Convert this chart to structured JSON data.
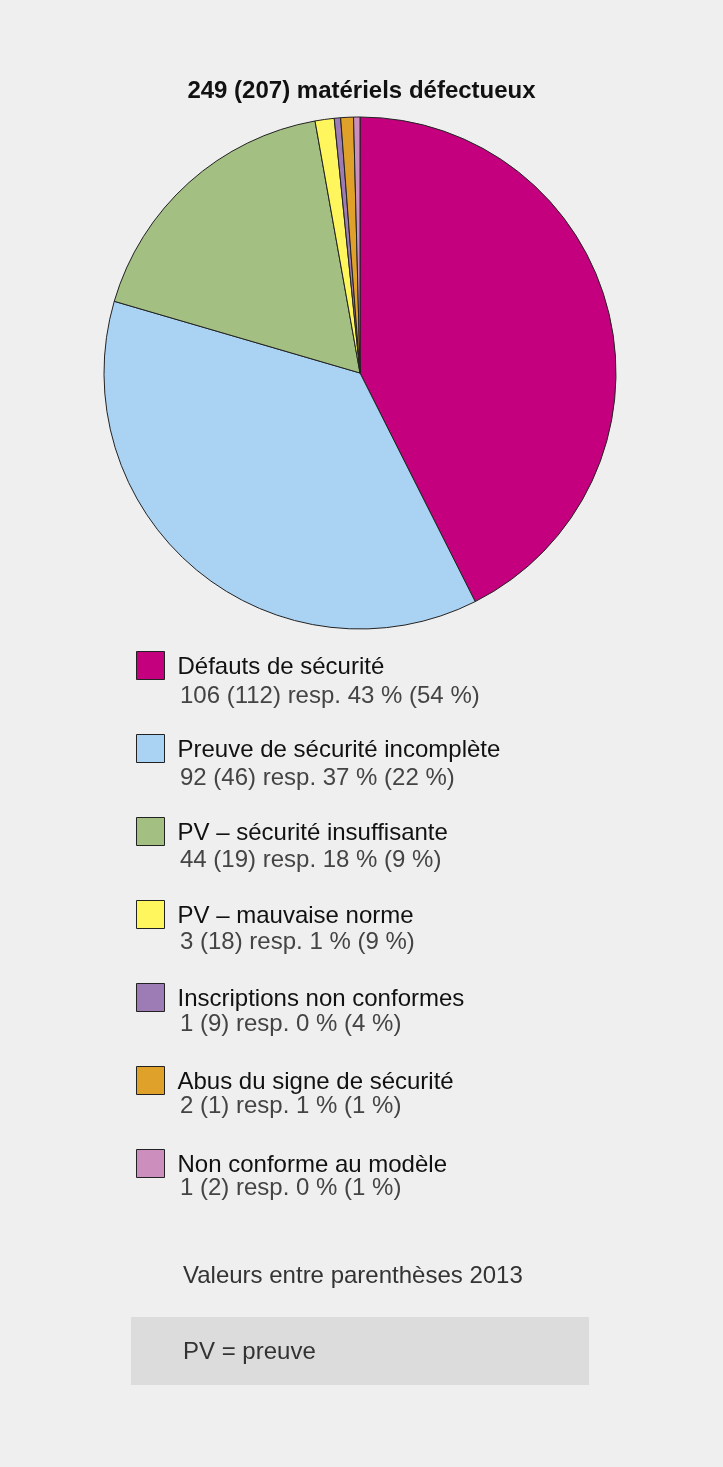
{
  "chart_data": {
    "type": "pie",
    "title": "249 (207) matériels défectueux",
    "categories": [
      "Défauts de sécurité",
      "Preuve de sécurité incomplète",
      "PV – sécurité insuffisante",
      "PV – mauvaise norme",
      "Inscriptions non conformes",
      "Abus du signe de sécurité",
      "Non conforme au modèle"
    ],
    "values": [
      106,
      92,
      44,
      3,
      1,
      2,
      1
    ],
    "colors": [
      "#c5007f",
      "#aad3f3",
      "#a3bf82",
      "#fef65c",
      "#9d7bb5",
      "#e0a12a",
      "#cc8fbd"
    ],
    "value_labels": [
      "106 (112) resp. 43 % (54 %)",
      "92 (46) resp. 37 % (22 %)",
      "44 (19) resp. 18 % (9 %)",
      "3 (18) resp. 1 % (9 %)",
      "1 (9) resp. 0 % (4 %)",
      "2 (1) resp. 1 % (1 %)",
      "1 (2) resp. 0 % (1 %)"
    ],
    "legend": "bottom",
    "annotations": [
      "Valeurs entre parenthèses 2013",
      "PV = preuve"
    ]
  }
}
